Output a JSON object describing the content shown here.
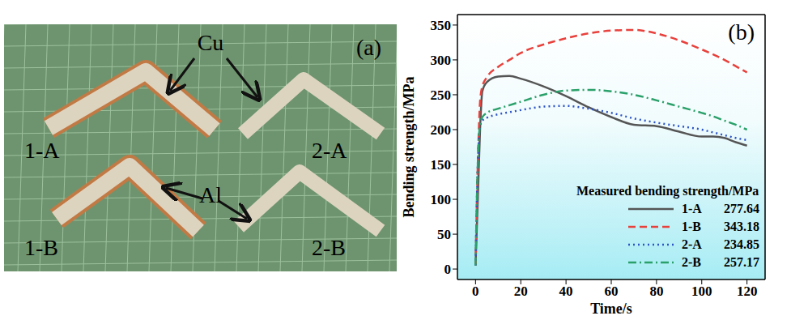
{
  "photo": {
    "panel_label": "(a)",
    "specimen_labels": [
      "1-A",
      "2-A",
      "1-B",
      "2-B"
    ],
    "material_labels": [
      "Cu",
      "Al"
    ]
  },
  "chart_data": {
    "type": "line",
    "title": "(b)",
    "x_label": "Time/s",
    "y_label": "Bending strength/MPa",
    "legend_title": "Measured bending strength/MPa",
    "legend": "lower right",
    "grid": false,
    "xlim": [
      -8,
      128
    ],
    "xticks": [
      0,
      20,
      40,
      60,
      80,
      100,
      120
    ],
    "ylim": [
      -15,
      365
    ],
    "yticks": [
      0,
      50,
      100,
      150,
      200,
      250,
      300,
      350
    ],
    "x": [
      0,
      1,
      2,
      3,
      5,
      10,
      15,
      20,
      30,
      40,
      50,
      60,
      70,
      80,
      90,
      100,
      105,
      110,
      115,
      120
    ],
    "series": [
      {
        "name": "1-A",
        "measured_strength": 277.64,
        "color": "#555555",
        "line_style": "solid",
        "values": [
          5,
          100,
          200,
          255,
          268,
          276,
          277,
          273,
          262,
          248,
          232,
          218,
          207,
          205,
          197,
          190,
          190,
          188,
          182,
          177
        ]
      },
      {
        "name": "1-B",
        "measured_strength": 343.18,
        "color": "#e8413c",
        "line_style": "dashed",
        "values": [
          5,
          150,
          240,
          262,
          275,
          290,
          300,
          310,
          322,
          331,
          338,
          342,
          343,
          338,
          328,
          315,
          308,
          300,
          291,
          282
        ]
      },
      {
        "name": "2-A",
        "measured_strength": 234.85,
        "color": "#2c54c8",
        "line_style": "dotted",
        "values": [
          5,
          150,
          205,
          213,
          217,
          222,
          225,
          228,
          233,
          234,
          230,
          224,
          216,
          210,
          205,
          200,
          196,
          192,
          188,
          185
        ]
      },
      {
        "name": "2-B",
        "measured_strength": 257.17,
        "color": "#2aa06a",
        "line_style": "dashdot",
        "values": [
          5,
          150,
          208,
          218,
          224,
          230,
          235,
          240,
          250,
          256,
          257,
          255,
          250,
          242,
          233,
          224,
          219,
          213,
          207,
          200
        ]
      }
    ]
  }
}
